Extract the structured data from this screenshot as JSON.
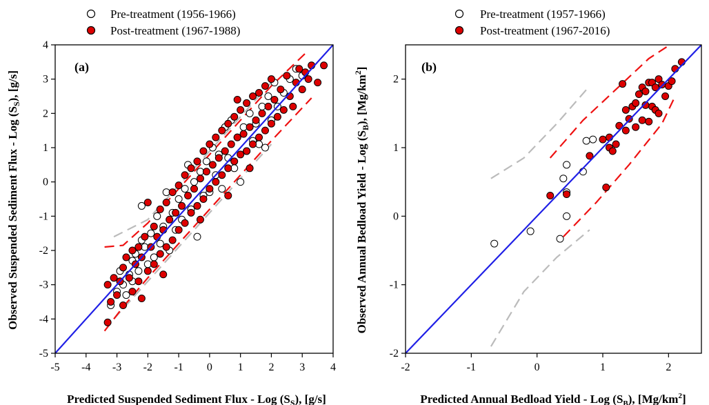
{
  "colors": {
    "one_to_one": "#1f1fe6",
    "post_fill": "#dd0000",
    "pre_fill": "#ffffff",
    "post_band": "#ee1111",
    "pre_band": "#bbbbbb",
    "marker_edge": "#000000"
  },
  "chart_data": [
    {
      "type": "scatter",
      "panel_label": "(a)",
      "xlabel": "Predicted Suspended Sediment Flux - Log (S",
      "xlabel_sub": "S",
      "xlabel_tail": "), [g/s]",
      "ylabel": "Observed Suspended Sediment Flux - Log (S",
      "ylabel_sub": "S",
      "ylabel_tail": "), [g/s]",
      "xlim": [
        -5,
        4
      ],
      "ylim": [
        -5,
        4
      ],
      "xticks": [
        -5,
        -4,
        -3,
        -2,
        -1,
        0,
        1,
        2,
        3,
        4
      ],
      "yticks": [
        -5,
        -4,
        -3,
        -2,
        -1,
        0,
        1,
        2,
        3,
        4
      ],
      "legend": [
        "Pre-treatment (1956-1966)",
        "Post-treatment (1967-1988)"
      ],
      "legend_position": "top-outside",
      "grid": false,
      "one_to_one_line": [
        [
          -5,
          -5
        ],
        [
          4,
          4
        ]
      ],
      "post_band_upper": [
        [
          -3.4,
          -1.9
        ],
        [
          -2.8,
          -1.85
        ],
        [
          -2,
          -1.2
        ],
        [
          0,
          0.8
        ],
        [
          2,
          2.8
        ],
        [
          3.1,
          3.75
        ]
      ],
      "post_band_lower": [
        [
          -3.4,
          -4.35
        ],
        [
          -2.8,
          -3.65
        ],
        [
          -2,
          -2.8
        ],
        [
          0,
          -0.8
        ],
        [
          2,
          1.2
        ],
        [
          3.3,
          2.45
        ]
      ],
      "pre_band_upper": [
        [
          -3.1,
          -1.6
        ],
        [
          -2,
          -1.1
        ],
        [
          0,
          0.9
        ],
        [
          2,
          2.9
        ]
      ],
      "pre_band_lower": [
        [
          -3.1,
          -4.0
        ],
        [
          -2,
          -2.9
        ],
        [
          0,
          -0.9
        ],
        [
          2,
          1.1
        ]
      ],
      "series": [
        {
          "name": "Pre-treatment (1956-1966)",
          "points": [
            [
              -3.2,
              -3.6
            ],
            [
              -3.0,
              -3.2
            ],
            [
              -2.9,
              -2.6
            ],
            [
              -2.8,
              -3.0
            ],
            [
              -2.7,
              -3.3
            ],
            [
              -2.6,
              -2.7
            ],
            [
              -2.5,
              -2.3
            ],
            [
              -2.5,
              -2.9
            ],
            [
              -2.4,
              -2.1
            ],
            [
              -2.3,
              -2.6
            ],
            [
              -2.2,
              -1.7
            ],
            [
              -2.1,
              -1.9
            ],
            [
              -2.2,
              -0.7
            ],
            [
              -2.0,
              -2.4
            ],
            [
              -1.9,
              -1.5
            ],
            [
              -1.8,
              -2.2
            ],
            [
              -1.7,
              -1.0
            ],
            [
              -1.6,
              -1.8
            ],
            [
              -1.5,
              -1.3
            ],
            [
              -1.4,
              -0.3
            ],
            [
              -1.3,
              -2.0
            ],
            [
              -1.2,
              -0.9
            ],
            [
              -1.1,
              -1.4
            ],
            [
              -1.0,
              -0.5
            ],
            [
              -0.9,
              -1.1
            ],
            [
              -0.8,
              -0.2
            ],
            [
              -0.7,
              0.5
            ],
            [
              -0.6,
              -0.8
            ],
            [
              -0.5,
              0.0
            ],
            [
              -0.4,
              -1.6
            ],
            [
              -0.3,
              0.3
            ],
            [
              -0.2,
              -0.4
            ],
            [
              -0.1,
              0.6
            ],
            [
              0.0,
              -0.3
            ],
            [
              0.1,
              1.0
            ],
            [
              0.2,
              0.2
            ],
            [
              0.3,
              0.8
            ],
            [
              0.4,
              -0.2
            ],
            [
              0.5,
              1.6
            ],
            [
              0.6,
              0.7
            ],
            [
              0.7,
              1.8
            ],
            [
              0.8,
              0.4
            ],
            [
              0.9,
              1.3
            ],
            [
              1.0,
              0.0
            ],
            [
              1.1,
              1.6
            ],
            [
              1.2,
              0.9
            ],
            [
              1.3,
              2.0
            ],
            [
              1.4,
              1.2
            ],
            [
              1.5,
              1.7
            ],
            [
              1.6,
              1.1
            ],
            [
              1.7,
              2.2
            ],
            [
              1.8,
              1.0
            ],
            [
              1.9,
              2.5
            ],
            [
              2.0,
              1.8
            ],
            [
              2.1,
              2.9
            ],
            [
              2.2,
              2.2
            ],
            [
              2.4,
              2.6
            ],
            [
              2.6,
              3.0
            ],
            [
              2.8,
              3.3
            ],
            [
              3.0,
              3.1
            ]
          ]
        },
        {
          "name": "Post-treatment (1967-1988)",
          "points": [
            [
              -3.3,
              -4.1
            ],
            [
              -3.3,
              -3.0
            ],
            [
              -3.2,
              -3.5
            ],
            [
              -3.1,
              -2.8
            ],
            [
              -3.0,
              -3.3
            ],
            [
              -2.9,
              -2.9
            ],
            [
              -2.8,
              -2.5
            ],
            [
              -2.8,
              -3.6
            ],
            [
              -2.7,
              -2.2
            ],
            [
              -2.6,
              -2.8
            ],
            [
              -2.5,
              -2.0
            ],
            [
              -2.5,
              -3.2
            ],
            [
              -2.4,
              -2.4
            ],
            [
              -2.3,
              -1.9
            ],
            [
              -2.3,
              -2.9
            ],
            [
              -2.2,
              -2.2
            ],
            [
              -2.2,
              -3.4
            ],
            [
              -2.1,
              -1.6
            ],
            [
              -2.0,
              -2.6
            ],
            [
              -2.0,
              -0.6
            ],
            [
              -1.9,
              -1.9
            ],
            [
              -1.8,
              -1.3
            ],
            [
              -1.8,
              -2.4
            ],
            [
              -1.7,
              -1.6
            ],
            [
              -1.6,
              -2.1
            ],
            [
              -1.6,
              -0.8
            ],
            [
              -1.5,
              -1.4
            ],
            [
              -1.4,
              -1.9
            ],
            [
              -1.4,
              -0.6
            ],
            [
              -1.3,
              -1.1
            ],
            [
              -1.2,
              -1.7
            ],
            [
              -1.2,
              -0.3
            ],
            [
              -1.1,
              -0.9
            ],
            [
              -1.0,
              -1.4
            ],
            [
              -1.0,
              -0.1
            ],
            [
              -0.9,
              -0.7
            ],
            [
              -0.8,
              -1.2
            ],
            [
              -0.8,
              0.2
            ],
            [
              -0.7,
              -0.4
            ],
            [
              -0.6,
              -0.9
            ],
            [
              -0.6,
              0.4
            ],
            [
              -0.5,
              -0.2
            ],
            [
              -0.4,
              -0.7
            ],
            [
              -0.4,
              0.6
            ],
            [
              -0.3,
              0.1
            ],
            [
              -0.2,
              -0.5
            ],
            [
              -0.2,
              0.9
            ],
            [
              -0.1,
              0.3
            ],
            [
              0.0,
              -0.2
            ],
            [
              0.0,
              1.1
            ],
            [
              0.1,
              0.5
            ],
            [
              0.2,
              0.0
            ],
            [
              0.2,
              1.3
            ],
            [
              0.3,
              0.7
            ],
            [
              0.4,
              0.2
            ],
            [
              0.4,
              1.5
            ],
            [
              0.5,
              0.9
            ],
            [
              0.6,
              0.4
            ],
            [
              0.6,
              1.7
            ],
            [
              0.7,
              1.1
            ],
            [
              0.8,
              0.6
            ],
            [
              0.8,
              1.9
            ],
            [
              0.9,
              1.3
            ],
            [
              1.0,
              0.8
            ],
            [
              1.0,
              2.1
            ],
            [
              1.1,
              1.4
            ],
            [
              1.2,
              0.9
            ],
            [
              1.2,
              2.3
            ],
            [
              1.3,
              1.6
            ],
            [
              1.4,
              1.1
            ],
            [
              1.4,
              2.5
            ],
            [
              1.5,
              1.8
            ],
            [
              1.6,
              1.3
            ],
            [
              1.6,
              2.6
            ],
            [
              1.7,
              2.0
            ],
            [
              1.8,
              1.5
            ],
            [
              1.8,
              2.8
            ],
            [
              1.9,
              2.2
            ],
            [
              2.0,
              1.7
            ],
            [
              2.0,
              3.0
            ],
            [
              2.1,
              2.4
            ],
            [
              2.2,
              1.9
            ],
            [
              2.3,
              2.7
            ],
            [
              2.4,
              2.1
            ],
            [
              2.5,
              3.1
            ],
            [
              2.6,
              2.5
            ],
            [
              2.7,
              2.2
            ],
            [
              2.8,
              2.9
            ],
            [
              2.9,
              3.3
            ],
            [
              3.0,
              2.7
            ],
            [
              3.1,
              3.2
            ],
            [
              3.2,
              3.0
            ],
            [
              3.3,
              3.4
            ],
            [
              3.5,
              2.9
            ],
            [
              3.7,
              3.4
            ],
            [
              -0.3,
              -1.1
            ],
            [
              0.6,
              -0.4
            ],
            [
              1.3,
              0.4
            ],
            [
              -1.5,
              -2.7
            ],
            [
              0.9,
              2.4
            ]
          ]
        }
      ]
    },
    {
      "type": "scatter",
      "panel_label": "(b)",
      "xlabel": "Predicted Annual Bedload Yield - Log (S",
      "xlabel_sub": "B",
      "xlabel_tail": "), [Mg/km",
      "xlabel_sup": "2",
      "xlabel_end": "]",
      "ylabel": "Observed Annual Bedload Yield - Log (S",
      "ylabel_sub": "B",
      "ylabel_tail": "), [Mg/km",
      "ylabel_sup": "2",
      "ylabel_end": "]",
      "xlim": [
        -2,
        2.5
      ],
      "ylim": [
        -2,
        2.5
      ],
      "xticks": [
        -2,
        -1,
        0,
        1,
        2
      ],
      "yticks": [
        -2,
        -1,
        0,
        1,
        2
      ],
      "legend": [
        "Pre-treatment (1957-1966)",
        "Post-treatment (1967-2016)"
      ],
      "legend_position": "top-outside",
      "grid": false,
      "one_to_one_line": [
        [
          -2,
          -2
        ],
        [
          2.5,
          2.5
        ]
      ],
      "post_band_upper": [
        [
          0.2,
          0.85
        ],
        [
          0.7,
          1.4
        ],
        [
          1.2,
          1.85
        ],
        [
          1.7,
          2.3
        ],
        [
          2.1,
          2.55
        ]
      ],
      "post_band_lower": [
        [
          0.4,
          -0.3
        ],
        [
          0.9,
          0.2
        ],
        [
          1.4,
          0.75
        ],
        [
          1.9,
          1.35
        ],
        [
          2.1,
          1.75
        ]
      ],
      "pre_band_upper": [
        [
          -0.7,
          0.55
        ],
        [
          -0.2,
          0.85
        ],
        [
          0.3,
          1.35
        ],
        [
          0.8,
          1.9
        ]
      ],
      "pre_band_lower": [
        [
          -0.7,
          -1.9
        ],
        [
          -0.2,
          -1.1
        ],
        [
          0.3,
          -0.6
        ],
        [
          0.8,
          -0.2
        ]
      ],
      "series": [
        {
          "name": "Pre-treatment (1957-1966)",
          "points": [
            [
              -0.65,
              -0.4
            ],
            [
              -0.1,
              -0.22
            ],
            [
              0.35,
              -0.33
            ],
            [
              0.45,
              0.0
            ],
            [
              0.4,
              0.55
            ],
            [
              0.45,
              0.75
            ],
            [
              0.45,
              0.35
            ],
            [
              0.7,
              0.65
            ],
            [
              0.75,
              1.1
            ],
            [
              0.85,
              1.12
            ]
          ]
        },
        {
          "name": "Post-treatment (1967-2016)",
          "points": [
            [
              0.2,
              0.3
            ],
            [
              0.45,
              0.32
            ],
            [
              0.8,
              0.88
            ],
            [
              1.05,
              0.42
            ],
            [
              1.0,
              1.12
            ],
            [
              1.1,
              1.0
            ],
            [
              1.1,
              1.15
            ],
            [
              1.15,
              0.95
            ],
            [
              1.2,
              1.05
            ],
            [
              1.25,
              1.32
            ],
            [
              1.3,
              1.93
            ],
            [
              1.35,
              1.55
            ],
            [
              1.4,
              1.42
            ],
            [
              1.45,
              1.6
            ],
            [
              1.5,
              1.3
            ],
            [
              1.5,
              1.65
            ],
            [
              1.55,
              1.78
            ],
            [
              1.6,
              1.4
            ],
            [
              1.6,
              1.88
            ],
            [
              1.65,
              1.82
            ],
            [
              1.7,
              1.95
            ],
            [
              1.7,
              1.38
            ],
            [
              1.75,
              1.6
            ],
            [
              1.75,
              1.95
            ],
            [
              1.8,
              1.88
            ],
            [
              1.8,
              1.55
            ],
            [
              1.85,
              1.5
            ],
            [
              1.85,
              2.0
            ],
            [
              1.9,
              1.92
            ],
            [
              1.95,
              1.75
            ],
            [
              2.0,
              1.9
            ],
            [
              2.05,
              1.97
            ],
            [
              2.1,
              2.15
            ],
            [
              2.2,
              2.25
            ],
            [
              1.35,
              1.25
            ],
            [
              1.65,
              1.62
            ]
          ]
        }
      ]
    }
  ]
}
